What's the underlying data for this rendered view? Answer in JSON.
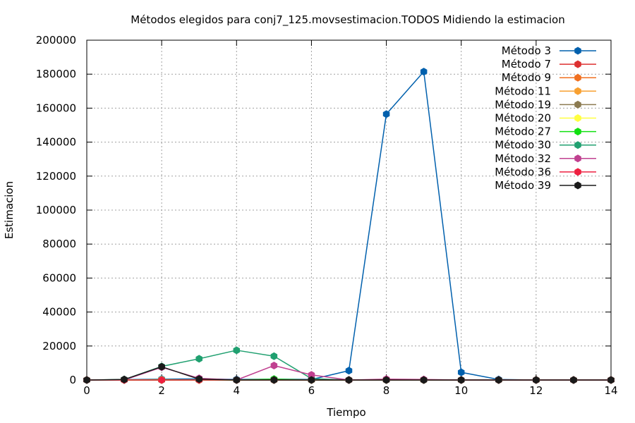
{
  "chart_data": {
    "type": "line",
    "title": "Métodos elegidos para conj7_125.movsestimacion.TODOS Midiendo la estimacion",
    "xlabel": "Tiempo",
    "ylabel": "Estimacion",
    "xlim": [
      0,
      14
    ],
    "ylim": [
      0,
      200000
    ],
    "xticks": [
      0,
      2,
      4,
      6,
      8,
      10,
      12,
      14
    ],
    "yticks": [
      0,
      20000,
      40000,
      60000,
      80000,
      100000,
      120000,
      140000,
      160000,
      180000,
      200000
    ],
    "grid": true,
    "legend_position": "top-right",
    "x": [
      0,
      1,
      2,
      3,
      4,
      5,
      6,
      7,
      8,
      9,
      10,
      11,
      12,
      13,
      14
    ],
    "series": [
      {
        "name": "Método 3",
        "color": "#0060ad",
        "values": [
          0,
          200,
          500,
          600,
          300,
          500,
          300,
          5500,
          156500,
          181500,
          4500,
          300,
          0,
          0,
          0
        ]
      },
      {
        "name": "Método 7",
        "color": "#dd3030",
        "values": [
          0,
          0,
          0,
          0,
          0,
          0,
          0,
          0,
          0,
          0,
          0,
          0,
          0,
          0,
          0
        ]
      },
      {
        "name": "Método 9",
        "color": "#f07020",
        "values": [
          0,
          0,
          0,
          0,
          0,
          0,
          0,
          0,
          0,
          0,
          0,
          0,
          0,
          0,
          0
        ]
      },
      {
        "name": "Método 11",
        "color": "#f8a030",
        "values": [
          0,
          0,
          0,
          0,
          0,
          0,
          0,
          0,
          0,
          0,
          0,
          0,
          0,
          0,
          0
        ]
      },
      {
        "name": "Método 19",
        "color": "#8b7a50",
        "values": [
          0,
          0,
          0,
          0,
          0,
          0,
          0,
          0,
          0,
          0,
          0,
          0,
          0,
          0,
          0
        ]
      },
      {
        "name": "Método 20",
        "color": "#ffff40",
        "values": [
          0,
          0,
          200,
          0,
          0,
          0,
          0,
          0,
          0,
          0,
          0,
          0,
          0,
          0,
          0
        ]
      },
      {
        "name": "Método 27",
        "color": "#10e010",
        "values": [
          0,
          0,
          0,
          0,
          0,
          500,
          0,
          0,
          0,
          0,
          0,
          0,
          0,
          0,
          0
        ]
      },
      {
        "name": "Método 30",
        "color": "#20a070",
        "values": [
          0,
          300,
          8000,
          12500,
          17500,
          14000,
          800,
          0,
          0,
          0,
          0,
          0,
          0,
          0,
          0
        ]
      },
      {
        "name": "Método 32",
        "color": "#c04090",
        "values": [
          0,
          0,
          7500,
          1000,
          0,
          8500,
          3000,
          0,
          500,
          300,
          0,
          0,
          0,
          0,
          0
        ]
      },
      {
        "name": "Método 36",
        "color": "#ee2040",
        "values": [
          0,
          0,
          0,
          0,
          0,
          0,
          0,
          0,
          0,
          0,
          0,
          0,
          0,
          0,
          0
        ]
      },
      {
        "name": "Método 39",
        "color": "#1a1a1a",
        "values": [
          0,
          300,
          7800,
          500,
          0,
          0,
          0,
          0,
          0,
          0,
          0,
          0,
          0,
          0,
          0
        ]
      }
    ]
  }
}
